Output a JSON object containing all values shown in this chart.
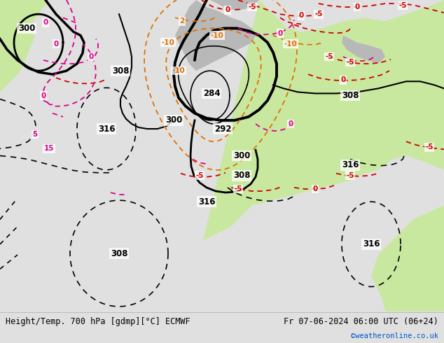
{
  "title_left": "Height/Temp. 700 hPa [gdmp][°C] ECMWF",
  "title_right": "Fr 07-06-2024 06:00 UTC (06+24)",
  "credit": "©weatheronline.co.uk",
  "credit_color": "#0055cc",
  "footer_bg": "#f0f0f0",
  "figsize": [
    6.34,
    4.9
  ],
  "dpi": 100,
  "map_bg": "#d8d8d8",
  "green_color": "#c8e8a0",
  "gray_color": "#b8b8b8"
}
